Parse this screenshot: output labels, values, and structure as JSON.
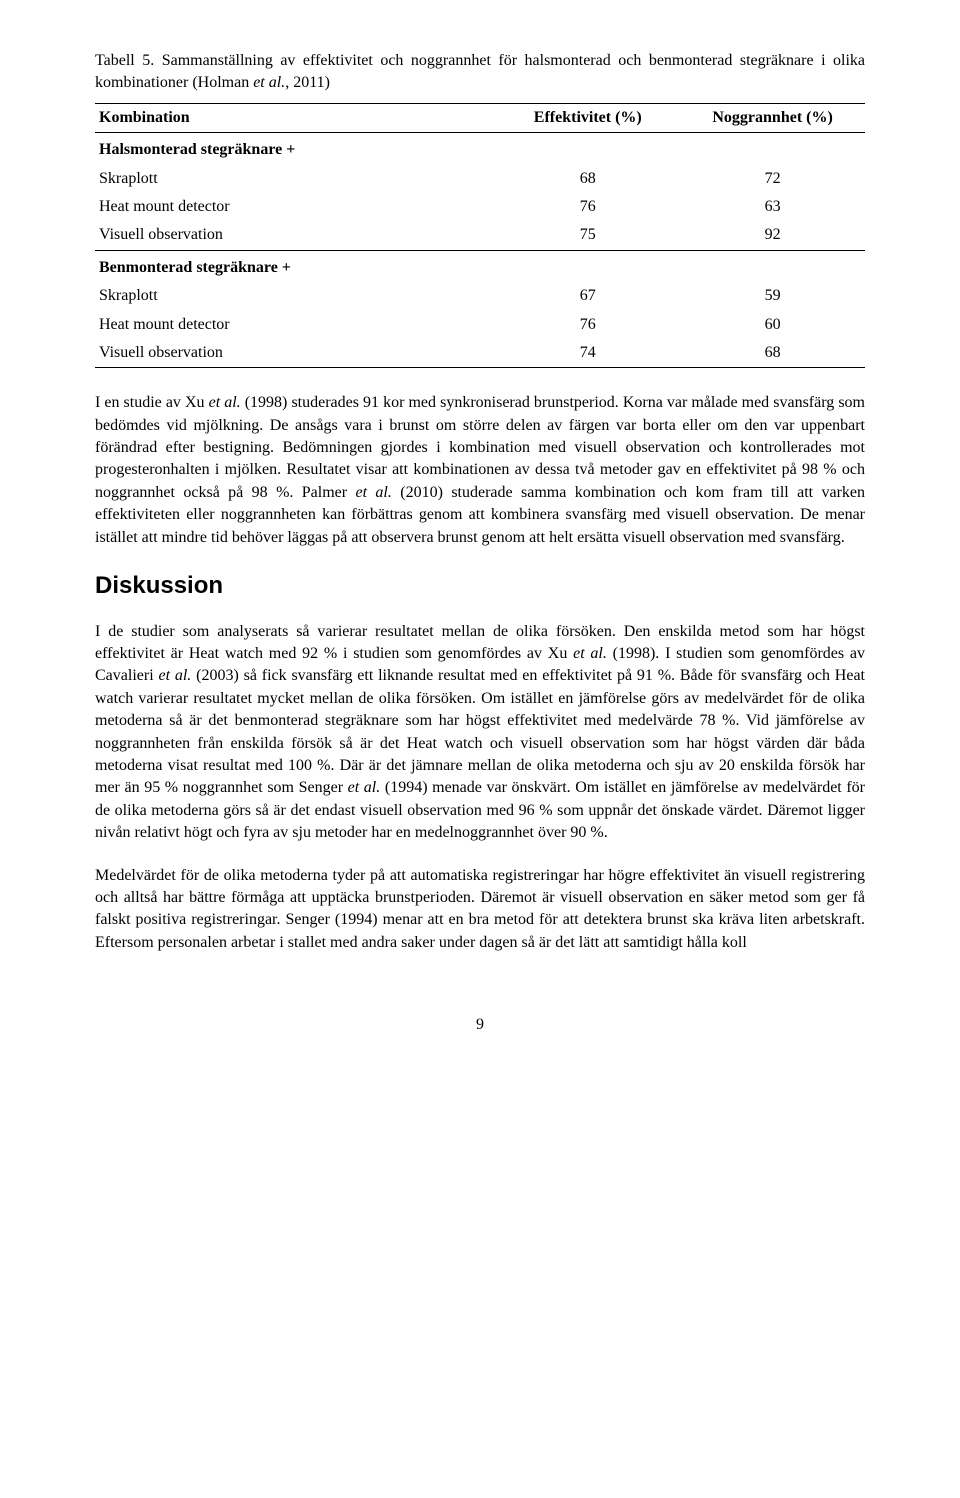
{
  "table": {
    "caption_pre": "Tabell 5. Sammanställning av effektivitet och noggrannhet för halsmonterad och benmonterad stegräknare i olika kombinationer (Holman ",
    "caption_italic": "et al.",
    "caption_post": ", 2011)",
    "headers": [
      "Kombination",
      "Effektivitet (%)",
      "Noggrannhet (%)"
    ],
    "groups": [
      {
        "title": "Halsmonterad stegräknare +",
        "rows": [
          {
            "label": "Skraplott",
            "eff": "68",
            "nog": "72"
          },
          {
            "label": "Heat mount detector",
            "eff": "76",
            "nog": "63"
          },
          {
            "label": "Visuell observation",
            "eff": "75",
            "nog": "92"
          }
        ]
      },
      {
        "title": "Benmonterad stegräknare +",
        "rows": [
          {
            "label": "Skraplott",
            "eff": "67",
            "nog": "59"
          },
          {
            "label": "Heat mount detector",
            "eff": "76",
            "nog": "60"
          },
          {
            "label": "Visuell observation",
            "eff": "74",
            "nog": "68"
          }
        ]
      }
    ]
  },
  "para1": {
    "pre": "I en studie av Xu ",
    "i1": "et al.",
    "mid1": " (1998) studerades 91 kor med synkroniserad brunstperiod. Korna var målade med svansfärg som bedömdes vid mjölkning. De ansågs vara i brunst om större delen av färgen var borta eller om den var uppenbart förändrad efter bestigning. Bedömningen gjordes i kombination med visuell observation och kontrollerades mot progesteronhalten i mjölken. Resultatet visar att kombinationen av dessa två metoder gav en effektivitet på 98 % och noggrannhet också på 98 %. Palmer ",
    "i2": "et al.",
    "post": " (2010) studerade samma kombination och kom fram till att varken effektiviteten eller noggrannheten kan förbättras genom att kombinera svansfärg med visuell observation. De menar istället att mindre tid behöver läggas på att observera brunst genom att helt ersätta visuell observation med svansfärg."
  },
  "heading": "Diskussion",
  "para2": {
    "pre": "I de studier som analyserats så varierar resultatet mellan de olika försöken. Den enskilda metod som har högst effektivitet är Heat watch med 92 % i studien som genomfördes av Xu ",
    "i1": "et al.",
    "mid1": " (1998). I studien som genomfördes av Cavalieri ",
    "i2": "et al.",
    "mid2": " (2003) så fick svansfärg ett liknande resultat med en effektivitet på 91 %. Både för svansfärg och Heat watch varierar resultatet mycket mellan de olika försöken. Om istället en jämförelse görs av medelvärdet för de olika metoderna så är det benmonterad stegräknare som har högst effektivitet med medelvärde 78 %. Vid jämförelse av noggrannheten från enskilda försök så är det Heat watch och visuell observation som har högst värden där båda metoderna visat resultat med 100 %. Där är det jämnare mellan de olika metoderna och sju av 20 enskilda försök har mer än 95 % noggrannhet som Senger ",
    "i3": "et al.",
    "post": " (1994) menade var önskvärt. Om istället en jämförelse av medelvärdet för de olika metoderna görs så är det endast visuell observation med 96 % som uppnår det önskade värdet. Däremot ligger nivån relativt högt och fyra av sju metoder har en medelnoggrannhet över 90 %."
  },
  "para3": "Medelvärdet för de olika metoderna tyder på att automatiska registreringar har högre effektivitet än visuell registrering och alltså har bättre förmåga att upptäcka brunstperioden. Däremot är visuell observation en säker metod som ger få falskt positiva registreringar. Senger (1994) menar att en bra metod för att detektera brunst ska kräva liten arbetskraft. Eftersom personalen arbetar i stallet med andra saker under dagen så är det lätt att samtidigt hålla koll",
  "page_number": "9"
}
